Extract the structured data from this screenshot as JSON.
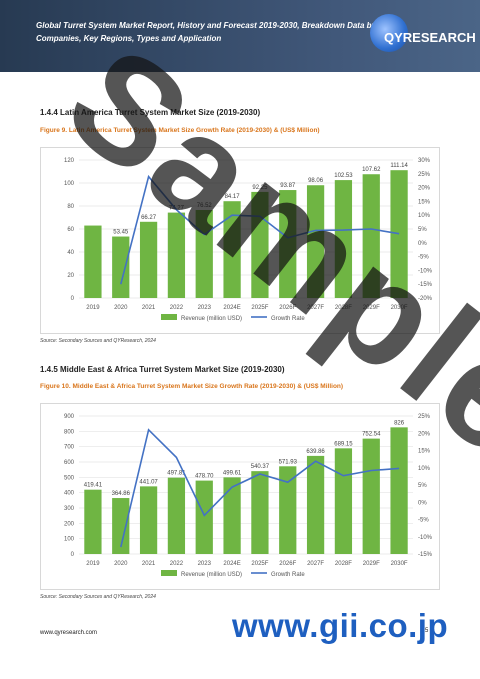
{
  "header": {
    "title": "Global Turret System Market Report, History and Forecast 2019-2030, Breakdown Data by Companies, Key Regions, Types and Application",
    "logo_text": "QYRESEARCH"
  },
  "sections": [
    {
      "title": "1.4.4  Latin America Turret System Market Size (2019-2030)",
      "figure": "Figure 9.   Latin America Turret System Market Size Growth Rate (2019-2030) & (US$ Million)",
      "source": "Source: Secondary Sources and QYResearch, 2024"
    },
    {
      "title": "1.4.5  Middle East & Africa Turret System Market Size (2019-2030)",
      "figure": "Figure 10.   Middle East & Africa Turret System Market Size Growth Rate (2019-2030) & (US$ Million)",
      "source": "Source: Secondary Sources and QYResearch, 2024"
    }
  ],
  "chart_data": [
    {
      "type": "bar",
      "categories": [
        "2019",
        "2020",
        "2021",
        "2022",
        "2023",
        "2024E",
        "2025F",
        "2026F",
        "2027F",
        "2028F",
        "2029F",
        "2030F"
      ],
      "series": [
        {
          "name": "Revenue (million USD)",
          "type": "bar",
          "axis": "left",
          "values": [
            63.0,
            53.45,
            66.27,
            74.27,
            76.52,
            84.17,
            92.25,
            93.87,
            98.06,
            102.53,
            107.62,
            111.14
          ]
        },
        {
          "name": "Growth Rate",
          "type": "line",
          "axis": "right",
          "values": [
            null,
            -15,
            24,
            12,
            3,
            10,
            9.6,
            1.8,
            4.5,
            4.6,
            5.0,
            3.3
          ]
        }
      ],
      "data_labels": [
        "",
        "53.45",
        "66.27",
        "74.27",
        "76.52",
        "84.17",
        "92.25",
        "93.87",
        "98.06",
        "102.53",
        "107.62",
        "111.14"
      ],
      "ylim": [
        0,
        120
      ],
      "yticks": [
        "0",
        "20",
        "40",
        "60",
        "80",
        "100",
        "120"
      ],
      "y2lim": [
        -20,
        30
      ],
      "y2ticks": [
        "-20%",
        "-15%",
        "-10%",
        "-5%",
        "0%",
        "5%",
        "10%",
        "15%",
        "20%",
        "25%",
        "30%"
      ],
      "legend": "bottom",
      "colors": {
        "bar": "#6fb543",
        "line": "#4472c4"
      }
    },
    {
      "type": "bar",
      "categories": [
        "2019",
        "2020",
        "2021",
        "2022",
        "2023",
        "2024E",
        "2025F",
        "2026F",
        "2027F",
        "2028F",
        "2029F",
        "2030F"
      ],
      "series": [
        {
          "name": "Revenue (million USD)",
          "type": "bar",
          "axis": "left",
          "values": [
            419.41,
            364.86,
            441.07,
            497.81,
            478.7,
            499.61,
            540.37,
            571.93,
            639.86,
            689.15,
            752.54,
            826.0
          ]
        },
        {
          "name": "Growth Rate",
          "type": "line",
          "axis": "right",
          "values": [
            null,
            -13,
            21,
            13,
            -3.8,
            4.4,
            8.2,
            5.8,
            11.9,
            7.7,
            9.2,
            9.8
          ]
        }
      ],
      "data_labels": [
        "419.41",
        "364.86",
        "441.07",
        "497.81",
        "478.70",
        "499.61",
        "540.37",
        "571.93",
        "639.86",
        "689.15",
        "752.54",
        "826"
      ],
      "ylim": [
        0,
        900
      ],
      "yticks": [
        "0",
        "100",
        "200",
        "300",
        "400",
        "500",
        "600",
        "700",
        "800",
        "900"
      ],
      "y2lim": [
        -15,
        25
      ],
      "y2ticks": [
        "-15%",
        "-10%",
        "-5%",
        "0%",
        "5%",
        "10%",
        "15%",
        "20%",
        "25%"
      ],
      "legend": "bottom",
      "colors": {
        "bar": "#6fb543",
        "line": "#4472c4"
      }
    }
  ],
  "footer": {
    "url": "www.qyresearch.com",
    "page": "5"
  },
  "watermark": {
    "text": "Sample",
    "site": "www.gii.co.jp"
  }
}
